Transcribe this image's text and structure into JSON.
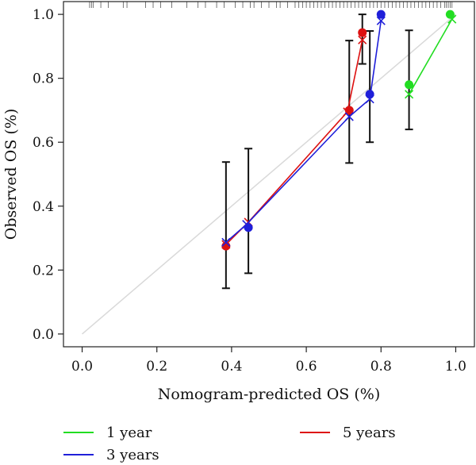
{
  "chart_data": {
    "type": "line",
    "title": "",
    "xlabel": "Nomogram-predicted OS (%)",
    "ylabel": "Observed OS (%)",
    "xlim": [
      -0.05,
      1.05
    ],
    "ylim": [
      -0.04,
      1.04
    ],
    "x_ticks": [
      "0.0",
      "0.2",
      "0.4",
      "0.6",
      "0.8",
      "1.0"
    ],
    "y_ticks": [
      "0.0",
      "0.2",
      "0.4",
      "0.6",
      "0.8",
      "1.0"
    ],
    "reference_line": {
      "from": [
        0,
        0
      ],
      "to": [
        1,
        1
      ],
      "color": "#d9d9d9"
    },
    "legend_placement": "bottom",
    "series": [
      {
        "name": "1 year",
        "color": "#22dd22",
        "observed": [
          [
            0.875,
            0.78
          ],
          [
            0.985,
            1.0
          ]
        ],
        "corrected": [
          [
            0.875,
            0.75
          ],
          [
            0.99,
            0.985
          ]
        ],
        "error_bars": [
          {
            "x": 0.875,
            "low": 0.64,
            "high": 0.95
          }
        ]
      },
      {
        "name": "3 years",
        "color": "#1f1fd9",
        "observed": [
          [
            0.445,
            0.333
          ],
          [
            0.77,
            0.75
          ],
          [
            0.8,
            1.0
          ]
        ],
        "corrected": [
          [
            0.385,
            0.287
          ],
          [
            0.44,
            0.343
          ],
          [
            0.715,
            0.68
          ],
          [
            0.77,
            0.735
          ],
          [
            0.8,
            0.98
          ]
        ],
        "error_bars": [
          {
            "x": 0.445,
            "low": 0.19,
            "high": 0.58
          },
          {
            "x": 0.77,
            "low": 0.6,
            "high": 0.948
          }
        ]
      },
      {
        "name": "5 years",
        "color": "#dd1111",
        "observed": [
          [
            0.385,
            0.275
          ],
          [
            0.715,
            0.7
          ],
          [
            0.75,
            0.943
          ]
        ],
        "corrected": [
          [
            0.385,
            0.28
          ],
          [
            0.445,
            0.35
          ],
          [
            0.71,
            0.695
          ],
          [
            0.75,
            0.92
          ]
        ],
        "error_bars": [
          {
            "x": 0.385,
            "low": 0.143,
            "high": 0.538
          },
          {
            "x": 0.715,
            "low": 0.535,
            "high": 0.918
          },
          {
            "x": 0.75,
            "low": 0.845,
            "high": 1.0
          }
        ]
      }
    ],
    "rug_x": [
      0.02,
      0.025,
      0.03,
      0.05,
      0.07,
      0.11,
      0.12,
      0.17,
      0.19,
      0.21,
      0.24,
      0.28,
      0.31,
      0.33,
      0.36,
      0.38,
      0.41,
      0.43,
      0.45,
      0.46,
      0.48,
      0.5,
      0.52,
      0.53,
      0.55,
      0.57,
      0.58,
      0.59,
      0.6,
      0.61,
      0.62,
      0.63,
      0.64,
      0.65,
      0.66,
      0.67,
      0.68,
      0.69,
      0.7,
      0.71,
      0.72,
      0.73,
      0.74,
      0.75,
      0.76,
      0.77,
      0.78,
      0.79,
      0.8,
      0.81,
      0.82,
      0.83,
      0.84,
      0.85,
      0.86,
      0.87,
      0.88,
      0.89,
      0.9,
      0.91,
      0.92,
      0.93,
      0.94,
      0.95,
      0.96,
      0.97,
      0.975,
      0.98,
      0.985,
      0.99
    ]
  }
}
